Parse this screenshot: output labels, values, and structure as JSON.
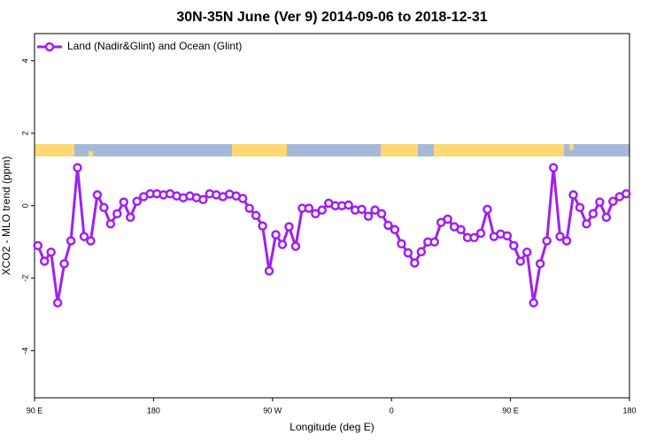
{
  "chart_data": {
    "type": "line",
    "title": "30N-35N June (Ver 9)   2014-09-06 to 2018-12-31",
    "x_label": "Longitude (deg E)",
    "y_label": "XCO2 - MLO trend (ppm)",
    "x": [
      92.5,
      97.5,
      102.5,
      107.5,
      112.5,
      117.5,
      122.5,
      127.5,
      132.5,
      137.5,
      142.5,
      147.5,
      152.5,
      157.5,
      162.5,
      167.5,
      172.5,
      177.5,
      182.5,
      187.5,
      192.5,
      197.5,
      202.5,
      207.5,
      212.5,
      217.5,
      222.5,
      227.5,
      232.5,
      237.5,
      242.5,
      247.5,
      252.5,
      257.5,
      262.5,
      267.5,
      272.5,
      277.5,
      282.5,
      287.5,
      292.5,
      297.5,
      302.5,
      307.5,
      312.5,
      317.5,
      322.5,
      327.5,
      332.5,
      337.5,
      342.5,
      347.5,
      352.5,
      357.5,
      362.5,
      367.5,
      372.5,
      377.5,
      382.5,
      387.5,
      392.5,
      397.5,
      402.5,
      407.5,
      412.5,
      417.5,
      422.5,
      427.5,
      432.5,
      437.5,
      442.5,
      447.5,
      452.5,
      457.5,
      462.5,
      467.5,
      472.5,
      477.5,
      482.5,
      487.5,
      492.5,
      497.5,
      502.5,
      507.5,
      512.5,
      517.5,
      522.5,
      527.5,
      532.5,
      537.5
    ],
    "series": [
      {
        "name": "Land (Nadir&Glint) and Ocean (Glint)",
        "color": "#a020f0",
        "values": [
          -1.1,
          -1.53,
          -1.28,
          -2.68,
          -1.6,
          -0.97,
          1.05,
          -0.85,
          -0.97,
          0.3,
          -0.05,
          -0.5,
          -0.22,
          0.1,
          -0.32,
          0.12,
          0.25,
          0.33,
          0.33,
          0.3,
          0.33,
          0.27,
          0.22,
          0.27,
          0.22,
          0.17,
          0.33,
          0.3,
          0.25,
          0.32,
          0.27,
          0.2,
          -0.07,
          -0.27,
          -0.56,
          -1.8,
          -0.8,
          -1.07,
          -0.58,
          -1.12,
          -0.07,
          -0.07,
          -0.22,
          -0.12,
          0.07,
          0,
          0,
          0.02,
          -0.12,
          -0.1,
          -0.29,
          -0.12,
          -0.22,
          -0.54,
          -0.66,
          -1.05,
          -1.3,
          -1.58,
          -1.27,
          -1.0,
          -1.0,
          -0.46,
          -0.37,
          -0.58,
          -0.66,
          -0.88,
          -0.88,
          -0.76,
          -0.1,
          -0.85,
          -0.78,
          -0.83,
          -1.1,
          -1.53,
          -1.28,
          -2.68,
          -1.6,
          -0.97,
          1.05,
          -0.85,
          -0.97,
          0.3,
          -0.05,
          -0.5,
          -0.22,
          0.1,
          -0.32,
          0.12,
          0.25,
          0.33
        ]
      }
    ],
    "xlim": [
      90,
      540
    ],
    "xticks": [
      {
        "value": 90,
        "label": "90 E"
      },
      180,
      {
        "value": 270,
        "label": "90 W"
      },
      {
        "value": 360,
        "label": "0"
      },
      {
        "value": 450,
        "label": "90 E"
      },
      {
        "value": 540,
        "label": "180"
      }
    ],
    "ylim": [
      -5.3,
      4.75
    ],
    "yticks": [
      -4,
      -2,
      0,
      2,
      4
    ],
    "legend": "top-left"
  }
}
